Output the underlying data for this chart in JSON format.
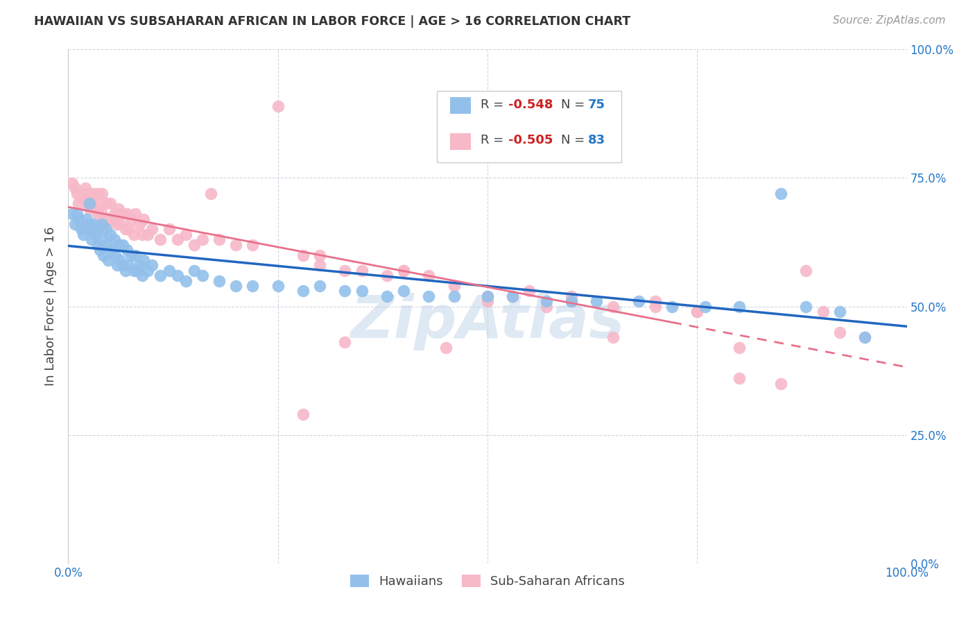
{
  "title": "HAWAIIAN VS SUBSAHARAN AFRICAN IN LABOR FORCE | AGE > 16 CORRELATION CHART",
  "source": "Source: ZipAtlas.com",
  "ylabel": "In Labor Force | Age > 16",
  "yticks_labels": [
    "0.0%",
    "25.0%",
    "50.0%",
    "75.0%",
    "100.0%"
  ],
  "ytick_vals": [
    0.0,
    0.25,
    0.5,
    0.75,
    1.0
  ],
  "xlim": [
    0.0,
    1.0
  ],
  "ylim": [
    0.0,
    1.0
  ],
  "r1": "-0.548",
  "n1": "75",
  "r2": "-0.505",
  "n2": "83",
  "hawaiian_color": "#92c0ea",
  "subsaharan_color": "#f7b8c8",
  "trendline_blue": "#2166c0",
  "trendline_pink": "#e8708a",
  "watermark": "ZipAtlas",
  "haw_x": [
    0.005,
    0.008,
    0.01,
    0.012,
    0.015,
    0.018,
    0.02,
    0.022,
    0.025,
    0.025,
    0.027,
    0.028,
    0.03,
    0.032,
    0.035,
    0.035,
    0.038,
    0.04,
    0.04,
    0.042,
    0.045,
    0.045,
    0.048,
    0.05,
    0.052,
    0.055,
    0.056,
    0.058,
    0.06,
    0.062,
    0.065,
    0.065,
    0.068,
    0.07,
    0.072,
    0.075,
    0.078,
    0.08,
    0.082,
    0.085,
    0.088,
    0.09,
    0.095,
    0.1,
    0.11,
    0.12,
    0.13,
    0.14,
    0.15,
    0.16,
    0.18,
    0.2,
    0.22,
    0.25,
    0.28,
    0.3,
    0.33,
    0.35,
    0.38,
    0.4,
    0.43,
    0.46,
    0.5,
    0.53,
    0.57,
    0.6,
    0.63,
    0.68,
    0.72,
    0.76,
    0.8,
    0.85,
    0.88,
    0.92,
    0.95
  ],
  "haw_y": [
    0.68,
    0.66,
    0.68,
    0.67,
    0.65,
    0.64,
    0.65,
    0.67,
    0.7,
    0.66,
    0.65,
    0.63,
    0.66,
    0.64,
    0.65,
    0.62,
    0.61,
    0.66,
    0.63,
    0.6,
    0.65,
    0.62,
    0.59,
    0.64,
    0.61,
    0.63,
    0.6,
    0.58,
    0.62,
    0.59,
    0.62,
    0.58,
    0.57,
    0.61,
    0.58,
    0.6,
    0.57,
    0.6,
    0.57,
    0.58,
    0.56,
    0.59,
    0.57,
    0.58,
    0.56,
    0.57,
    0.56,
    0.55,
    0.57,
    0.56,
    0.55,
    0.54,
    0.54,
    0.54,
    0.53,
    0.54,
    0.53,
    0.53,
    0.52,
    0.53,
    0.52,
    0.52,
    0.52,
    0.52,
    0.51,
    0.51,
    0.51,
    0.51,
    0.5,
    0.5,
    0.5,
    0.72,
    0.5,
    0.49,
    0.44
  ],
  "sub_x": [
    0.005,
    0.008,
    0.01,
    0.012,
    0.015,
    0.018,
    0.02,
    0.022,
    0.025,
    0.025,
    0.028,
    0.03,
    0.032,
    0.035,
    0.035,
    0.038,
    0.04,
    0.04,
    0.042,
    0.045,
    0.048,
    0.05,
    0.052,
    0.055,
    0.058,
    0.06,
    0.062,
    0.065,
    0.068,
    0.07,
    0.072,
    0.075,
    0.078,
    0.08,
    0.085,
    0.088,
    0.09,
    0.095,
    0.1,
    0.11,
    0.12,
    0.13,
    0.14,
    0.15,
    0.16,
    0.17,
    0.18,
    0.2,
    0.22,
    0.25,
    0.28,
    0.3,
    0.3,
    0.33,
    0.35,
    0.38,
    0.4,
    0.43,
    0.46,
    0.5,
    0.53,
    0.57,
    0.6,
    0.65,
    0.7,
    0.75,
    0.8,
    0.85,
    0.88,
    0.9,
    0.92,
    0.95,
    0.28,
    0.33,
    0.4,
    0.45,
    0.5,
    0.55,
    0.6,
    0.65,
    0.7,
    0.75,
    0.8
  ],
  "sub_y": [
    0.74,
    0.73,
    0.72,
    0.7,
    0.72,
    0.71,
    0.73,
    0.7,
    0.72,
    0.69,
    0.7,
    0.72,
    0.69,
    0.72,
    0.68,
    0.7,
    0.72,
    0.68,
    0.66,
    0.7,
    0.67,
    0.7,
    0.67,
    0.68,
    0.66,
    0.69,
    0.66,
    0.68,
    0.65,
    0.68,
    0.65,
    0.67,
    0.64,
    0.68,
    0.66,
    0.64,
    0.67,
    0.64,
    0.65,
    0.63,
    0.65,
    0.63,
    0.64,
    0.62,
    0.63,
    0.72,
    0.63,
    0.62,
    0.62,
    0.89,
    0.6,
    0.6,
    0.58,
    0.57,
    0.57,
    0.56,
    0.57,
    0.56,
    0.54,
    0.52,
    0.52,
    0.5,
    0.51,
    0.5,
    0.5,
    0.49,
    0.36,
    0.35,
    0.57,
    0.49,
    0.45,
    0.44,
    0.29,
    0.43,
    0.57,
    0.42,
    0.51,
    0.53,
    0.52,
    0.44,
    0.51,
    0.49,
    0.42
  ]
}
